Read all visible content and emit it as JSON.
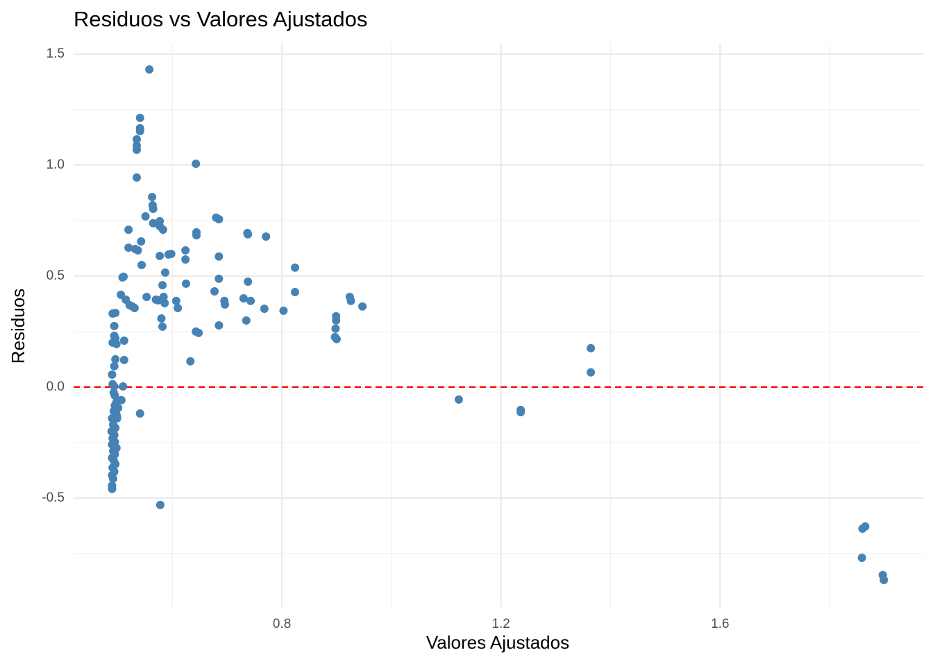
{
  "chart_data": {
    "type": "scatter",
    "title": "Residuos vs Valores Ajustados",
    "x_label": "Valores Ajustados",
    "y_label": "Residuos",
    "xlim": [
      0.4197,
      1.971
    ],
    "ylim": [
      -0.991,
      1.55
    ],
    "xticks": [
      0.8,
      1.2,
      1.6
    ],
    "yticks": [
      1.5,
      {
        "value": 1,
        "label": "1.0"
      },
      0.5,
      {
        "value": 0,
        "label": "0.0"
      },
      -0.5
    ],
    "minor_xticks": [
      0.6,
      1,
      1.4,
      1.8
    ],
    "minor_yticks": [
      1.25,
      0.75,
      0.25,
      -0.25,
      -0.75
    ],
    "grid": true,
    "hline": 0,
    "hline_color": "#ff0000",
    "series": [
      {
        "color": "#4682b4",
        "x": [
          0.491,
          0.496,
          0.494,
          0.494,
          0.496,
          0.491,
          0.498,
          0.496,
          0.494,
          0.49,
          0.491,
          0.494,
          0.493,
          0.495,
          0.498,
          0.495,
          0.493,
          0.498,
          0.49,
          0.499,
          0.492,
          0.496,
          0.489,
          0.494,
          0.491,
          0.495,
          0.49,
          0.498,
          0.492,
          0.495,
          0.49,
          0.493,
          0.496,
          0.491,
          0.494,
          0.49,
          0.492,
          0.49,
          0.49,
          0.499,
          0.501,
          0.507,
          0.51,
          0.509,
          0.511,
          0.506,
          0.515,
          0.512,
          0.512,
          0.52,
          0.52,
          0.522,
          0.527,
          0.531,
          0.532,
          0.537,
          0.535,
          0.535,
          0.535,
          0.535,
          0.541,
          0.541,
          0.541,
          0.543,
          0.544,
          0.541,
          0.558,
          0.551,
          0.553,
          0.563,
          0.564,
          0.565,
          0.565,
          0.57,
          0.574,
          0.577,
          0.577,
          0.577,
          0.578,
          0.58,
          0.582,
          0.582,
          0.583,
          0.584,
          0.586,
          0.587,
          0.593,
          0.598,
          0.607,
          0.61,
          0.624,
          0.624,
          0.625,
          0.633,
          0.643,
          0.644,
          0.644,
          0.643,
          0.648,
          0.677,
          0.68,
          0.685,
          0.685,
          0.685,
          0.685,
          0.695,
          0.696,
          0.73,
          0.735,
          0.737,
          0.738,
          0.738,
          0.743,
          0.768,
          0.771,
          0.803,
          0.824,
          0.824,
          0.899,
          0.899,
          0.898,
          0.897,
          0.9,
          0.924,
          0.926,
          0.947,
          1.123,
          1.236,
          1.236,
          1.364,
          1.364,
          1.86,
          1.865,
          1.859,
          1.897,
          1.899
        ],
        "values": [
          0.331,
          0.334,
          0.275,
          0.231,
          0.219,
          0.2,
          0.194,
          0.125,
          0.094,
          0.056,
          0.013,
          0.003,
          -0.025,
          -0.038,
          -0.069,
          -0.084,
          -0.109,
          -0.125,
          -0.141,
          -0.141,
          -0.169,
          -0.184,
          -0.2,
          -0.216,
          -0.231,
          -0.247,
          -0.259,
          -0.275,
          -0.288,
          -0.303,
          -0.319,
          -0.331,
          -0.347,
          -0.363,
          -0.381,
          -0.397,
          -0.413,
          -0.444,
          -0.459,
          -0.134,
          -0.094,
          -0.059,
          0.003,
          0.494,
          0.497,
          0.416,
          0.394,
          0.209,
          0.122,
          0.709,
          0.628,
          0.369,
          0.363,
          0.356,
          0.622,
          0.616,
          0.944,
          1.069,
          1.088,
          1.116,
          1.213,
          1.166,
          1.153,
          0.656,
          0.55,
          -0.119,
          1.431,
          0.769,
          0.406,
          0.856,
          0.819,
          0.803,
          0.738,
          0.394,
          0.391,
          0.747,
          0.725,
          0.591,
          -0.531,
          0.309,
          0.459,
          0.272,
          0.709,
          0.406,
          0.378,
          0.516,
          0.597,
          0.6,
          0.388,
          0.356,
          0.616,
          0.575,
          0.466,
          0.116,
          1.006,
          0.697,
          0.684,
          0.25,
          0.244,
          0.431,
          0.763,
          0.756,
          0.588,
          0.488,
          0.278,
          0.388,
          0.372,
          0.4,
          0.3,
          0.694,
          0.688,
          0.475,
          0.388,
          0.353,
          0.678,
          0.344,
          0.538,
          0.428,
          0.319,
          0.3,
          0.263,
          0.225,
          0.216,
          0.406,
          0.388,
          0.363,
          -0.056,
          -0.103,
          -0.113,
          0.175,
          0.066,
          -0.638,
          -0.628,
          -0.769,
          -0.847,
          -0.869
        ]
      }
    ]
  }
}
